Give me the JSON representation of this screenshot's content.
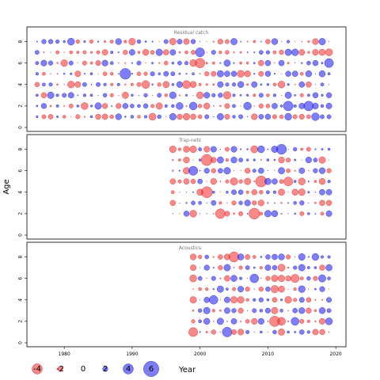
{
  "chart_data": {
    "type": "scatter",
    "ylabel": "Age",
    "xlabel": "Year",
    "x_ticks": [
      1980,
      1990,
      2000,
      2010,
      2020
    ],
    "xlim": [
      1974.5,
      2021.5
    ],
    "colors": {
      "positive": "#3333ee",
      "negative": "#ee3333"
    },
    "panels": [
      {
        "title": "Residual catch",
        "year_start": 1976,
        "year_end": 2019,
        "ages": [
          1,
          2,
          3,
          4,
          5,
          6,
          7,
          8
        ],
        "y_ticks": [
          0,
          2,
          4,
          6,
          8
        ],
        "ylim": [
          0,
          9
        ]
      },
      {
        "title": "Trap-nets",
        "year_start": 1996,
        "year_end": 2019,
        "ages": [
          2,
          3,
          4,
          5,
          6,
          7,
          8
        ],
        "y_ticks": [
          0,
          2,
          4,
          6,
          8
        ],
        "ylim": [
          0,
          9
        ]
      },
      {
        "title": "Acoustics",
        "year_start": 1999,
        "year_end": 2019,
        "ages": [
          1,
          2,
          3,
          4,
          5,
          6,
          7,
          8
        ],
        "y_ticks": [
          0,
          2,
          4,
          6,
          8
        ],
        "ylim": [
          0,
          9
        ]
      }
    ],
    "legend": {
      "values": [
        -4,
        -2,
        0,
        2,
        4,
        6
      ],
      "labels": [
        "-4",
        "-2",
        "0",
        "2",
        "4",
        "6"
      ]
    }
  }
}
